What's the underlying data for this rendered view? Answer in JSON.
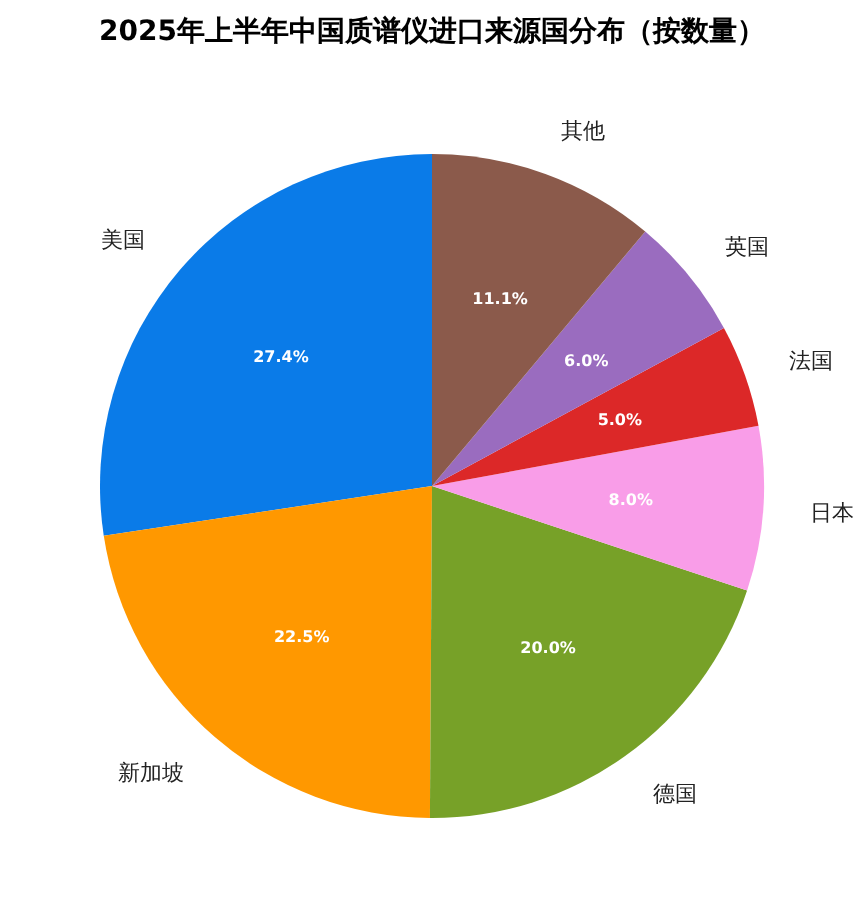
{
  "chart_data": {
    "type": "pie",
    "title": "2025年上半年中国质谱仪进口来源国分布（按数量）",
    "categories": [
      "美国",
      "新加坡",
      "德国",
      "日本",
      "法国",
      "英国",
      "其他"
    ],
    "values": [
      27.4,
      22.5,
      20.0,
      8.0,
      5.0,
      6.0,
      11.1
    ],
    "colors": [
      "#0a7be8",
      "#ff9800",
      "#77a128",
      "#f99de8",
      "#dc2828",
      "#9a6cbf",
      "#8b5a4b"
    ],
    "value_labels": [
      "27.4%",
      "22.5%",
      "20.0%",
      "8.0%",
      "5.0%",
      "6.0%",
      "11.1%"
    ],
    "legend": false
  }
}
